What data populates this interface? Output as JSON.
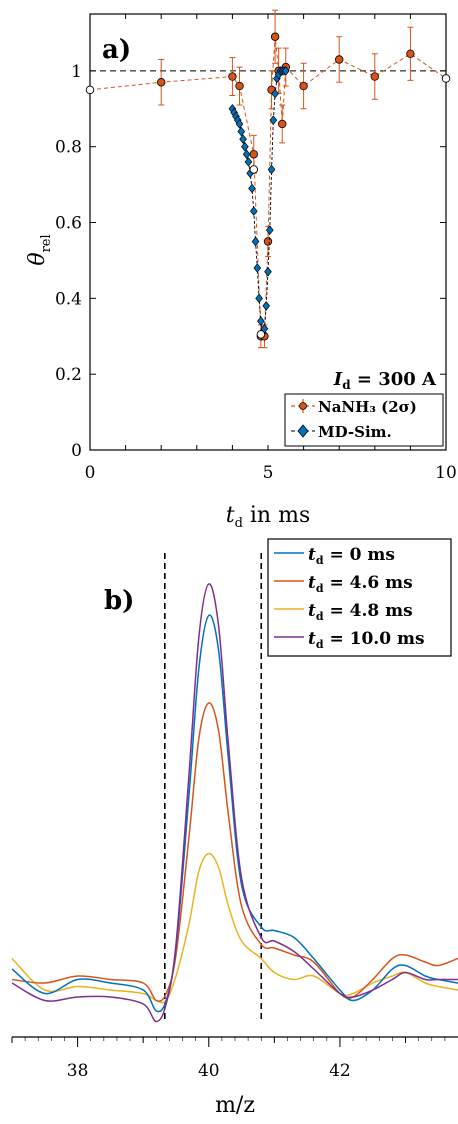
{
  "chart_data": [
    {
      "type": "scatter",
      "panel_label": "a)",
      "xlabel_main": "t",
      "xlabel_sub": "d",
      "xlabel_suffix": " in ms",
      "ylabel_main": "θ",
      "ylabel_sub": "rel",
      "xlim": [
        0,
        10
      ],
      "ylim": [
        0,
        1.15
      ],
      "xticks": [
        0,
        5,
        10
      ],
      "yticks": [
        0,
        0.2,
        0.4,
        0.6,
        0.8,
        1
      ],
      "annotation": "I",
      "annotation_sub": "d",
      "annotation_value": " = 300 A",
      "reference_line_y": 1,
      "colors": {
        "nanh3": "#D95319",
        "mdsim": "#0072BD",
        "reference": "#000000",
        "open_marker": "#ffffff"
      },
      "series": [
        {
          "name": "NaNH₃ (2σ)",
          "marker": "circle-errorbar",
          "points": [
            {
              "x": 2.0,
              "y": 0.97,
              "err": 0.06
            },
            {
              "x": 4.0,
              "y": 0.985,
              "err": 0.05
            },
            {
              "x": 4.2,
              "y": 0.96,
              "err": 0.05
            },
            {
              "x": 4.6,
              "y": 0.78,
              "err": 0.05
            },
            {
              "x": 4.8,
              "y": 0.3,
              "err": 0.03
            },
            {
              "x": 4.9,
              "y": 0.3,
              "err": 0.03
            },
            {
              "x": 5.0,
              "y": 0.55,
              "err": 0.04
            },
            {
              "x": 5.1,
              "y": 0.95,
              "err": 0.05
            },
            {
              "x": 5.2,
              "y": 1.09,
              "err": 0.07
            },
            {
              "x": 5.3,
              "y": 1.0,
              "err": 0.06
            },
            {
              "x": 5.4,
              "y": 0.86,
              "err": 0.05
            },
            {
              "x": 5.5,
              "y": 1.01,
              "err": 0.05
            },
            {
              "x": 6.0,
              "y": 0.96,
              "err": 0.06
            },
            {
              "x": 7.0,
              "y": 1.03,
              "err": 0.06
            },
            {
              "x": 8.0,
              "y": 0.985,
              "err": 0.06
            },
            {
              "x": 9.0,
              "y": 1.045,
              "err": 0.07
            }
          ]
        },
        {
          "name": "MD-Sim.",
          "marker": "diamond",
          "points": [
            {
              "x": 4.0,
              "y": 0.9
            },
            {
              "x": 4.05,
              "y": 0.89
            },
            {
              "x": 4.1,
              "y": 0.88
            },
            {
              "x": 4.15,
              "y": 0.87
            },
            {
              "x": 4.2,
              "y": 0.86
            },
            {
              "x": 4.25,
              "y": 0.84
            },
            {
              "x": 4.3,
              "y": 0.82
            },
            {
              "x": 4.35,
              "y": 0.8
            },
            {
              "x": 4.4,
              "y": 0.78
            },
            {
              "x": 4.45,
              "y": 0.76
            },
            {
              "x": 4.5,
              "y": 0.73
            },
            {
              "x": 4.55,
              "y": 0.69
            },
            {
              "x": 4.6,
              "y": 0.63
            },
            {
              "x": 4.65,
              "y": 0.55
            },
            {
              "x": 4.7,
              "y": 0.48
            },
            {
              "x": 4.75,
              "y": 0.4
            },
            {
              "x": 4.8,
              "y": 0.34
            },
            {
              "x": 4.85,
              "y": 0.31
            },
            {
              "x": 4.9,
              "y": 0.32
            },
            {
              "x": 4.95,
              "y": 0.38
            },
            {
              "x": 5.0,
              "y": 0.47
            },
            {
              "x": 5.05,
              "y": 0.58
            },
            {
              "x": 5.1,
              "y": 0.74
            },
            {
              "x": 5.15,
              "y": 0.87
            },
            {
              "x": 5.2,
              "y": 0.94
            },
            {
              "x": 5.25,
              "y": 0.98
            },
            {
              "x": 5.3,
              "y": 0.99
            },
            {
              "x": 5.35,
              "y": 1.0
            },
            {
              "x": 5.4,
              "y": 1.0
            },
            {
              "x": 5.45,
              "y": 1.0
            },
            {
              "x": 5.5,
              "y": 1.0
            }
          ]
        },
        {
          "name": "",
          "marker": "open-circle",
          "points": [
            {
              "x": 0.0,
              "y": 0.95
            },
            {
              "x": 4.6,
              "y": 0.74
            },
            {
              "x": 4.8,
              "y": 0.305
            },
            {
              "x": 10.0,
              "y": 0.98
            }
          ]
        }
      ]
    },
    {
      "type": "line",
      "panel_label": "b)",
      "xlabel": "m/z",
      "xlim": [
        37.0,
        43.8
      ],
      "xticks": [
        38,
        40,
        42
      ],
      "vertical_lines_x": [
        39.33,
        40.8
      ],
      "series": [
        {
          "name_main": "t",
          "name_sub": "d",
          "name_value": " = 0 ms",
          "color": "#0072BD",
          "x": [
            37.0,
            37.5,
            38.0,
            38.5,
            39.0,
            39.2,
            39.35,
            39.5,
            39.7,
            39.85,
            40.0,
            40.15,
            40.3,
            40.5,
            40.8,
            41.0,
            41.3,
            41.6,
            42.0,
            42.2,
            42.5,
            42.8,
            43.0,
            43.3,
            43.5,
            43.8
          ],
          "y": [
            0.12,
            0.05,
            0.09,
            0.08,
            0.06,
            0.0,
            0.03,
            0.18,
            0.62,
            0.98,
            1.13,
            1.03,
            0.72,
            0.36,
            0.24,
            0.23,
            0.21,
            0.15,
            0.06,
            0.03,
            0.06,
            0.12,
            0.13,
            0.1,
            0.09,
            0.08
          ]
        },
        {
          "name_main": "t",
          "name_sub": "d",
          "name_value": " = 4.6 ms",
          "color": "#D95319",
          "x": [
            37.0,
            37.5,
            38.0,
            38.5,
            39.0,
            39.2,
            39.35,
            39.5,
            39.7,
            39.85,
            40.0,
            40.15,
            40.3,
            40.5,
            40.8,
            41.0,
            41.3,
            41.6,
            42.0,
            42.2,
            42.5,
            42.8,
            43.0,
            43.3,
            43.5,
            43.8
          ],
          "y": [
            0.09,
            0.08,
            0.1,
            0.09,
            0.08,
            0.03,
            0.05,
            0.16,
            0.5,
            0.78,
            0.88,
            0.8,
            0.56,
            0.3,
            0.19,
            0.18,
            0.16,
            0.14,
            0.05,
            0.04,
            0.09,
            0.15,
            0.16,
            0.14,
            0.13,
            0.15
          ]
        },
        {
          "name_main": "t",
          "name_sub": "d",
          "name_value": " = 4.8 ms",
          "color": "#EDB120",
          "x": [
            37.0,
            37.5,
            38.0,
            38.5,
            39.0,
            39.2,
            39.35,
            39.5,
            39.7,
            39.85,
            40.0,
            40.15,
            40.3,
            40.5,
            40.8,
            41.0,
            41.3,
            41.6,
            42.0,
            42.2,
            42.5,
            42.8,
            43.0,
            43.3,
            43.5,
            43.8
          ],
          "y": [
            0.15,
            0.06,
            0.07,
            0.06,
            0.05,
            0.03,
            0.03,
            0.1,
            0.25,
            0.4,
            0.45,
            0.41,
            0.3,
            0.2,
            0.15,
            0.11,
            0.09,
            0.1,
            0.05,
            0.05,
            0.08,
            0.1,
            0.11,
            0.08,
            0.07,
            0.06
          ]
        },
        {
          "name_main": "t",
          "name_sub": "d",
          "name_value": " = 10.0 ms",
          "color": "#7E2F8E",
          "x": [
            37.0,
            37.5,
            38.0,
            38.5,
            39.0,
            39.2,
            39.35,
            39.5,
            39.7,
            39.85,
            40.0,
            40.15,
            40.3,
            40.5,
            40.8,
            41.0,
            41.3,
            41.6,
            42.0,
            42.2,
            42.5,
            42.8,
            43.0,
            43.3,
            43.5,
            43.8
          ],
          "y": [
            0.08,
            0.03,
            0.04,
            0.04,
            0.02,
            -0.03,
            0.02,
            0.19,
            0.68,
            1.07,
            1.22,
            1.1,
            0.76,
            0.38,
            0.21,
            0.2,
            0.17,
            0.12,
            0.05,
            0.04,
            0.06,
            0.09,
            0.11,
            0.09,
            0.09,
            0.09
          ]
        }
      ]
    }
  ]
}
